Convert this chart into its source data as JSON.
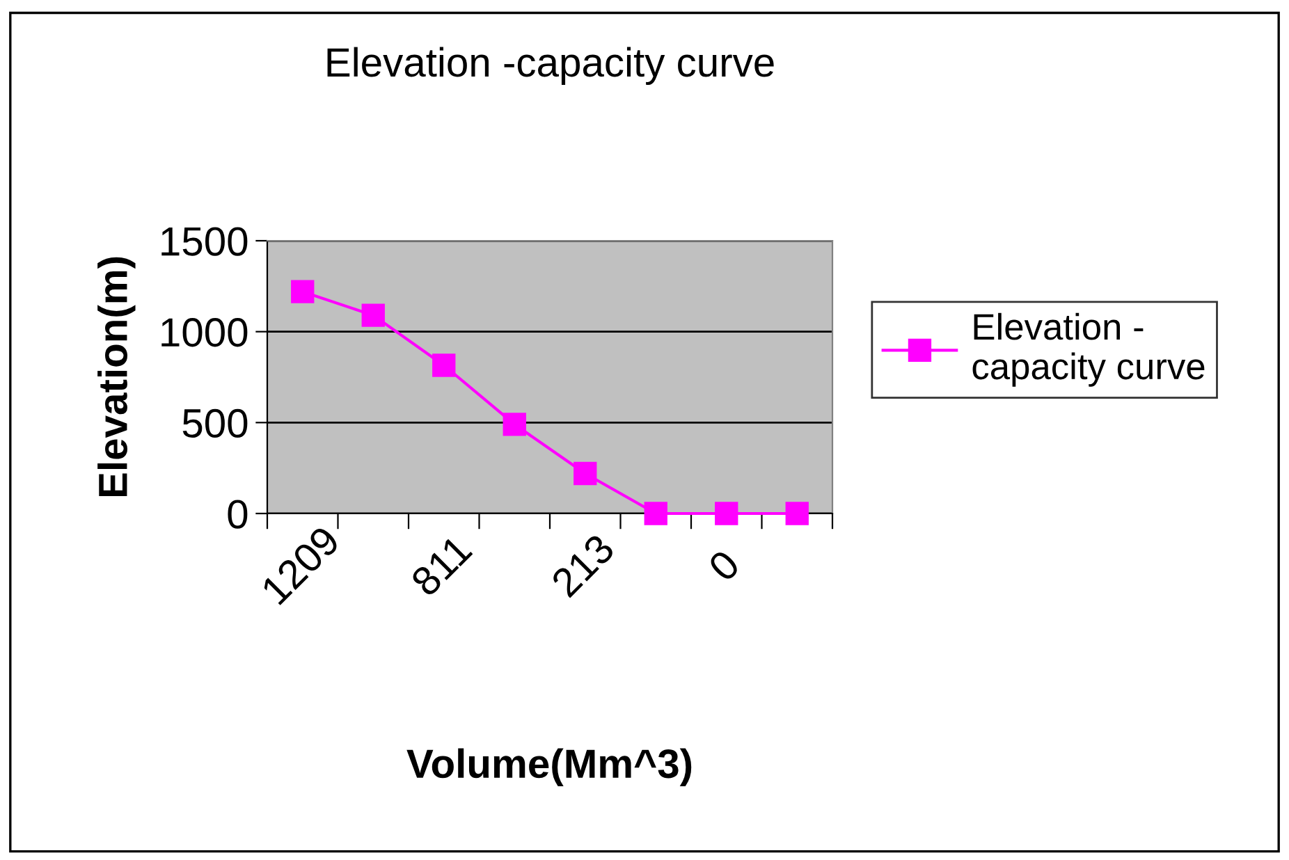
{
  "chart_data": {
    "type": "line",
    "title": "Elevation -capacity curve",
    "xlabel": "Volume(Mm^3)",
    "ylabel": "Elevation(m)",
    "categories": [
      "1209",
      null,
      "811",
      null,
      "213",
      null,
      "0",
      null
    ],
    "series": [
      {
        "name": "Elevation -\ncapacity curve",
        "color": "#ff00ff",
        "values": [
          1220,
          1090,
          815,
          490,
          220,
          0,
          0,
          0
        ]
      }
    ],
    "ylim": [
      0,
      1500
    ],
    "yticks": [
      0,
      500,
      1000,
      1500
    ],
    "grid": "y",
    "legend": "right",
    "marker": "square",
    "line_style": "solid"
  }
}
